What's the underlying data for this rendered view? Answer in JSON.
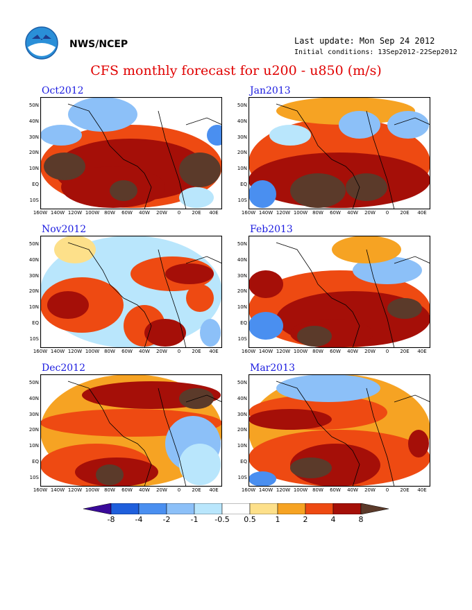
{
  "header": {
    "agency": "NWS/NCEP",
    "last_update": "Last update: Mon Sep 24 2012",
    "initial_conditions": "Initial conditions: 13Sep2012-22Sep2012",
    "title": "CFS monthly forecast for u200 - u850 (m/s)"
  },
  "axes": {
    "lat_labels": [
      "50N",
      "40N",
      "30N",
      "20N",
      "10N",
      "EQ",
      "10S"
    ],
    "lon_labels": [
      "160W",
      "140W",
      "120W",
      "100W",
      "80W",
      "60W",
      "40W",
      "20W",
      "0",
      "20E",
      "40E"
    ]
  },
  "panels": [
    {
      "month": "Oct2012"
    },
    {
      "month": "Jan2013"
    },
    {
      "month": "Nov2012"
    },
    {
      "month": "Feb2013"
    },
    {
      "month": "Dec2012"
    },
    {
      "month": "Mar2013"
    }
  ],
  "colorbar": {
    "labels": [
      "-8",
      "-4",
      "-2",
      "-1",
      "-0.5",
      "0.5",
      "1",
      "2",
      "4",
      "8"
    ],
    "colors": [
      "#3a0a9a",
      "#1f5fdc",
      "#4a8ff0",
      "#8cc0f8",
      "#b9e6fc",
      "#ffffff",
      "#fde08a",
      "#f6a323",
      "#ee4a12",
      "#a50f08",
      "#5b3a2a"
    ]
  }
}
